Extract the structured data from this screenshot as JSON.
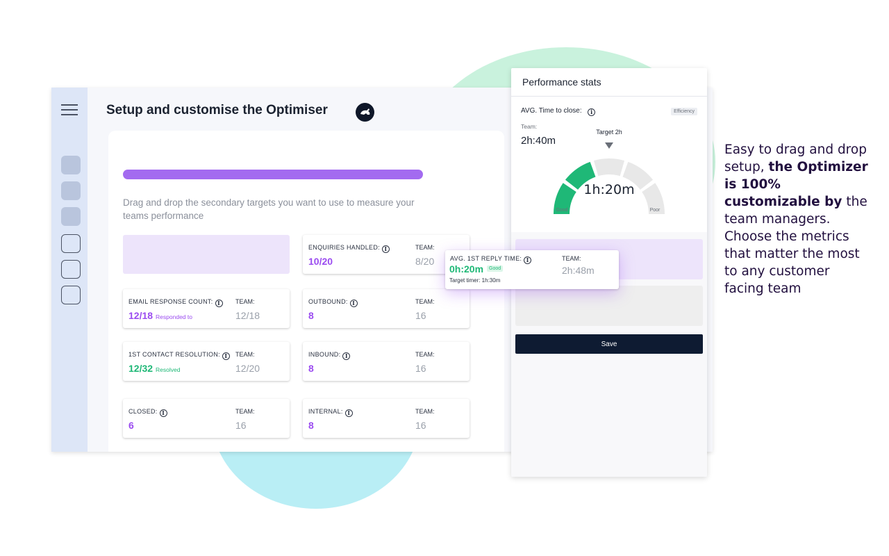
{
  "app": {
    "title": "Setup and customise the Optimiser",
    "instruction": "Drag and drop the secondary targets you want to use to measure your teams performance",
    "setup_progress": 1.0
  },
  "tiles": [
    {
      "label": "ENQUIRIES HANDLED:",
      "value": "10/20",
      "suffix": "",
      "team_label": "TEAM:",
      "team_value": "8/20",
      "color": "purple"
    },
    {
      "label": "EMAIL RESPONSE COUNT:",
      "value": "12/18",
      "suffix": "Responded to",
      "team_label": "TEAM:",
      "team_value": "12/18",
      "color": "purple"
    },
    {
      "label": "OUTBOUND:",
      "value": "8",
      "suffix": "",
      "team_label": "TEAM:",
      "team_value": "16",
      "color": "purple"
    },
    {
      "label": "1ST CONTACT RESOLUTION:",
      "value": "12/32",
      "suffix": "Resolved",
      "team_label": "TEAM:",
      "team_value": "12/20",
      "color": "green"
    },
    {
      "label": "INBOUND:",
      "value": "8",
      "suffix": "",
      "team_label": "TEAM:",
      "team_value": "16",
      "color": "purple"
    },
    {
      "label": "CLOSED:",
      "value": "6",
      "suffix": "",
      "team_label": "TEAM:",
      "team_value": "16",
      "color": "purple"
    },
    {
      "label": "INTERNAL:",
      "value": "8",
      "suffix": "",
      "team_label": "TEAM:",
      "team_value": "16",
      "color": "purple"
    }
  ],
  "drag_card": {
    "label": "AVG. 1ST REPLY TIME:",
    "value": "0h:20m",
    "badge": "Good",
    "target": "Target timer: 1h:30m",
    "team_label": "TEAM:",
    "team_value": "2h:48m"
  },
  "panel": {
    "title": "Performance stats",
    "metric_label": "AVG. Time to close:",
    "tag": "Efficiency",
    "team_label": "Team:",
    "team_time": "2h:40m",
    "target_label": "Target 2h",
    "gauge_value": "1h:20m",
    "gauge_fraction": 0.4,
    "good_label": "Good",
    "poor_label": "Poor",
    "save_label": "Save"
  },
  "marketing": {
    "intro": "Easy to drag and drop setup,",
    "bold": "the Optimizer is 100% customizable by",
    "outro": "the team managers. Choose the metrics that matter the most to any customer facing team"
  },
  "colors": {
    "accent_purple": "#a36bf0",
    "value_purple": "#9b4cf0",
    "value_green": "#1fb877",
    "navy": "#0e1b32"
  }
}
